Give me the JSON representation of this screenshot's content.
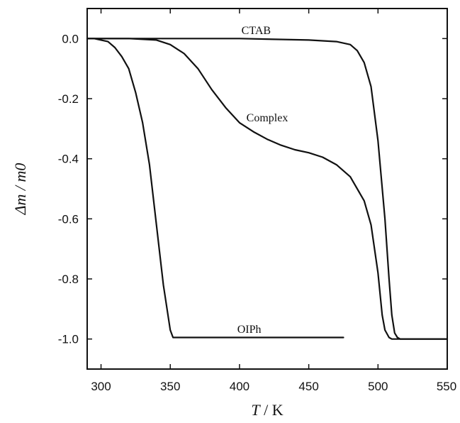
{
  "chart_data": {
    "type": "line",
    "xlabel_italic": "T",
    "xlabel_unit": " / K",
    "ylabel": "Δm / m0",
    "xlim": [
      290,
      550
    ],
    "ylim": [
      -1.1,
      0.1
    ],
    "xticks": [
      300,
      350,
      400,
      450,
      500,
      550
    ],
    "xtick_labels": [
      "300",
      "350",
      "400",
      "450",
      "500",
      "550"
    ],
    "yticks": [
      0.0,
      -0.2,
      -0.4,
      -0.6,
      -0.8,
      -1.0
    ],
    "ytick_labels": [
      "0.0",
      "-0.2",
      "-0.4",
      "-0.6",
      "-0.8",
      "-1.0"
    ],
    "grid": false,
    "legend": "none (curves labeled directly)",
    "series": [
      {
        "name": "CTAB",
        "x": [
          290,
          300,
          350,
          400,
          450,
          470,
          480,
          485,
          490,
          495,
          500,
          505,
          508,
          510,
          512,
          514,
          516,
          520,
          550
        ],
        "y": [
          0.0,
          0.0,
          0.0,
          0.0,
          -0.005,
          -0.01,
          -0.02,
          -0.04,
          -0.08,
          -0.16,
          -0.34,
          -0.6,
          -0.8,
          -0.92,
          -0.98,
          -0.995,
          -1.0,
          -1.0,
          -1.0
        ]
      },
      {
        "name": "Complex",
        "x": [
          290,
          300,
          320,
          340,
          350,
          360,
          370,
          380,
          390,
          400,
          410,
          420,
          430,
          440,
          450,
          460,
          470,
          480,
          490,
          495,
          500,
          503,
          505,
          508,
          510,
          520,
          550
        ],
        "y": [
          0.0,
          0.0,
          0.0,
          -0.005,
          -0.02,
          -0.05,
          -0.1,
          -0.17,
          -0.23,
          -0.28,
          -0.31,
          -0.335,
          -0.355,
          -0.37,
          -0.38,
          -0.395,
          -0.42,
          -0.46,
          -0.54,
          -0.62,
          -0.78,
          -0.92,
          -0.97,
          -0.995,
          -1.0,
          -1.0,
          -1.0
        ]
      },
      {
        "name": "OIPh",
        "x": [
          290,
          295,
          300,
          305,
          310,
          315,
          320,
          325,
          330,
          335,
          340,
          345,
          350,
          352,
          355,
          360,
          400,
          450,
          475
        ],
        "y": [
          0.0,
          0.0,
          -0.005,
          -0.01,
          -0.03,
          -0.06,
          -0.1,
          -0.18,
          -0.28,
          -0.42,
          -0.62,
          -0.82,
          -0.97,
          -0.995,
          -0.995,
          -0.995,
          -0.995,
          -0.995,
          -0.995
        ]
      }
    ],
    "series_labels": [
      {
        "text": "CTAB",
        "x": 400,
        "y": 0.015
      },
      {
        "text": "Complex",
        "x": 400,
        "y": -0.275
      },
      {
        "text": "OIPh",
        "x": 400,
        "y": -0.98
      }
    ]
  }
}
